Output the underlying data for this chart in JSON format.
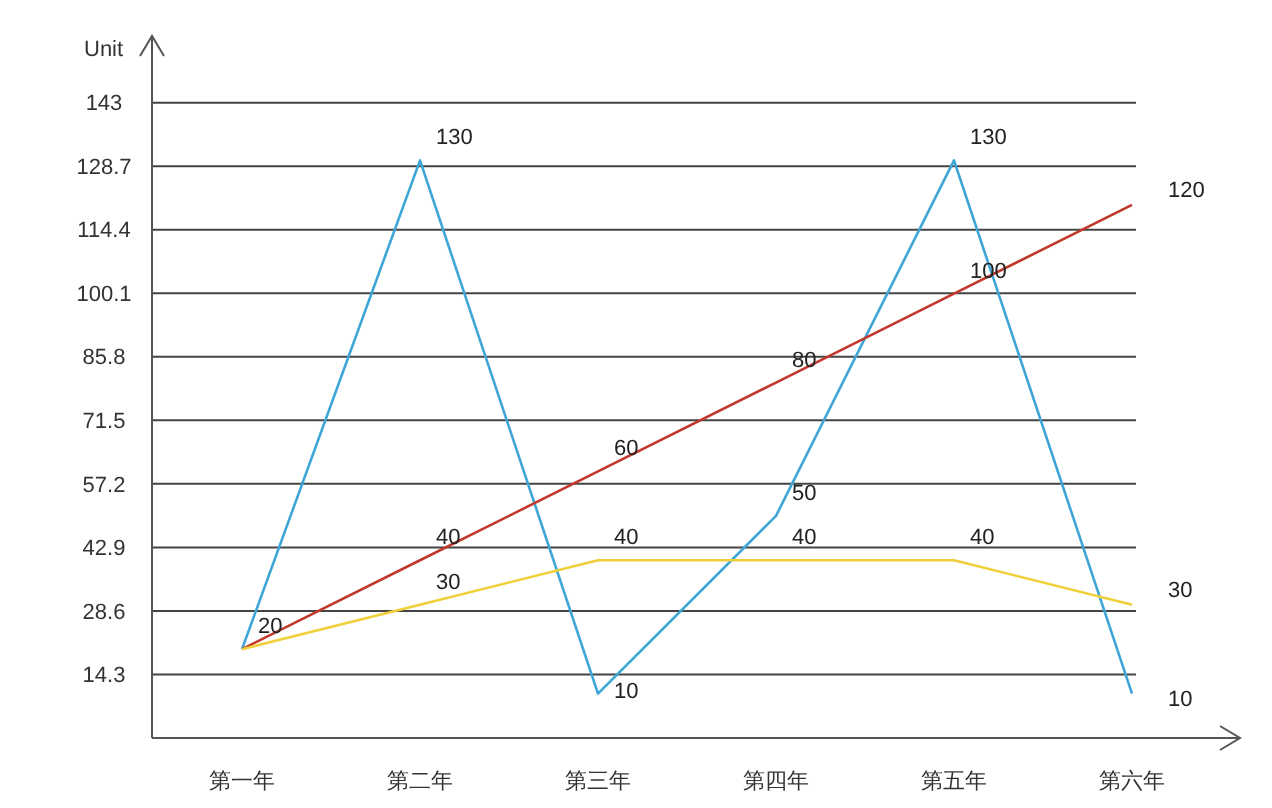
{
  "chart_data": {
    "type": "line",
    "ylabel": "Unit",
    "categories": [
      "第一年",
      "第二年",
      "第三年",
      "第四年",
      "第五年",
      "第六年"
    ],
    "ylim": [
      0,
      158
    ],
    "yticks": [
      14.3,
      28.6,
      42.9,
      57.2,
      71.5,
      85.8,
      100.1,
      114.4,
      128.7,
      143
    ],
    "grid": "y",
    "marker": "none",
    "line_style": "solid",
    "series": [
      {
        "color": "#3ea6d6",
        "values": [
          20,
          130,
          10,
          50,
          130,
          10
        ],
        "value_labels": [
          "20",
          "130",
          "10",
          "50",
          "130",
          "10"
        ]
      },
      {
        "color": "#c0392b",
        "values": [
          20,
          40,
          60,
          80,
          100,
          120
        ],
        "value_labels": [
          null,
          "40",
          "60",
          "80",
          "100",
          "120"
        ]
      },
      {
        "color": "#f0cf3a",
        "values": [
          20,
          30,
          40,
          40,
          40,
          30
        ],
        "value_labels": [
          null,
          "30",
          "40",
          "40",
          "40",
          "30"
        ]
      }
    ]
  }
}
